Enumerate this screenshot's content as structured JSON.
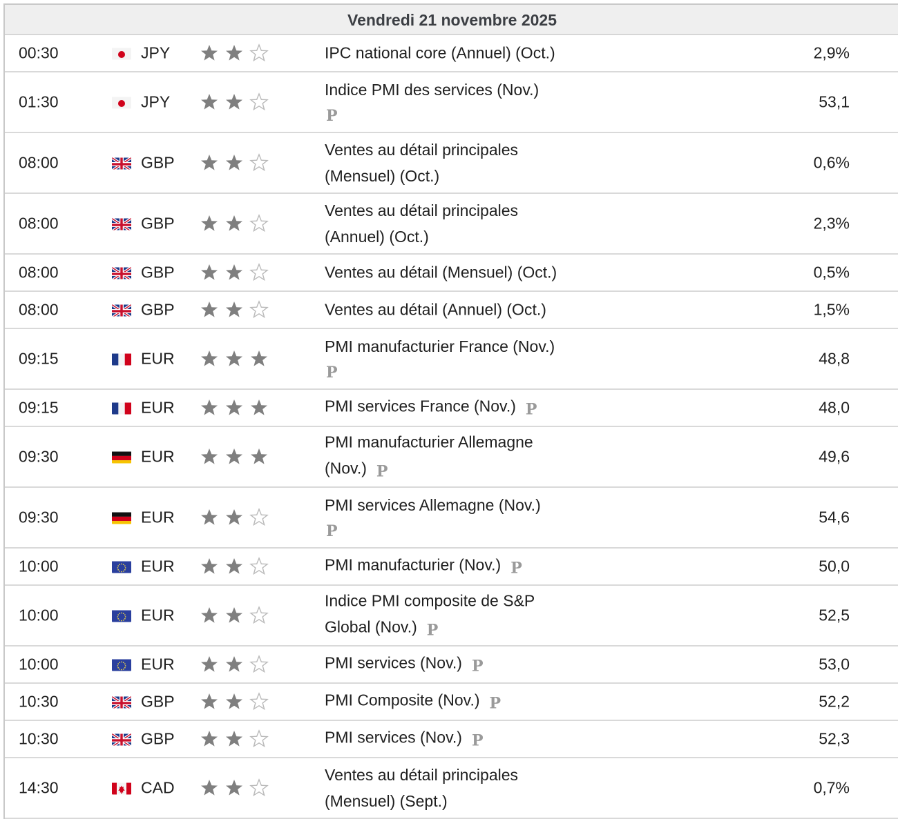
{
  "day": {
    "label": "Vendredi 21 novembre 2025"
  },
  "colors": {
    "star_filled": "#7f7f7f",
    "star_empty": "#b9b9b9",
    "p_mark": "#9a9a9a"
  },
  "rows": [
    {
      "time": "00:30",
      "flag": "japan-flag-icon",
      "currency": "JPY",
      "stars": 2,
      "event_lines": [
        "IPC national core (Annuel) (Oct.)"
      ],
      "prelim": false,
      "p_layout": "none",
      "value": "2,9%",
      "height": 52
    },
    {
      "time": "01:30",
      "flag": "japan-flag-icon",
      "currency": "JPY",
      "stars": 2,
      "event_lines": [
        "Indice PMI des services (Nov.)"
      ],
      "prelim": true,
      "p_layout": "block",
      "value": "53,1",
      "height": 86
    },
    {
      "time": "08:00",
      "flag": "uk-flag-icon",
      "currency": "GBP",
      "stars": 2,
      "event_lines": [
        "Ventes au détail principales",
        "(Mensuel) (Oct.)"
      ],
      "prelim": false,
      "p_layout": "none",
      "value": "0,6%",
      "height": 86
    },
    {
      "time": "08:00",
      "flag": "uk-flag-icon",
      "currency": "GBP",
      "stars": 2,
      "event_lines": [
        "Ventes au détail principales",
        "(Annuel) (Oct.)"
      ],
      "prelim": false,
      "p_layout": "none",
      "value": "2,3%",
      "height": 86
    },
    {
      "time": "08:00",
      "flag": "uk-flag-icon",
      "currency": "GBP",
      "stars": 2,
      "event_lines": [
        "Ventes au détail (Mensuel) (Oct.)"
      ],
      "prelim": false,
      "p_layout": "none",
      "value": "0,5%",
      "height": 52
    },
    {
      "time": "08:00",
      "flag": "uk-flag-icon",
      "currency": "GBP",
      "stars": 2,
      "event_lines": [
        "Ventes au détail (Annuel) (Oct.)"
      ],
      "prelim": false,
      "p_layout": "none",
      "value": "1,5%",
      "height": 52
    },
    {
      "time": "09:15",
      "flag": "france-flag-icon",
      "currency": "EUR",
      "stars": 3,
      "event_lines": [
        "PMI manufacturier France (Nov.)"
      ],
      "prelim": true,
      "p_layout": "block",
      "value": "48,8",
      "height": 86
    },
    {
      "time": "09:15",
      "flag": "france-flag-icon",
      "currency": "EUR",
      "stars": 3,
      "event_lines": [
        "PMI services France (Nov.)"
      ],
      "prelim": true,
      "p_layout": "inline",
      "value": "48,0",
      "height": 52
    },
    {
      "time": "09:30",
      "flag": "germany-flag-icon",
      "currency": "EUR",
      "stars": 3,
      "event_lines": [
        "PMI manufacturier Allemagne",
        "(Nov.)"
      ],
      "prelim": true,
      "p_layout": "inline",
      "value": "49,6",
      "height": 86
    },
    {
      "time": "09:30",
      "flag": "germany-flag-icon",
      "currency": "EUR",
      "stars": 2,
      "event_lines": [
        "PMI services Allemagne (Nov.)"
      ],
      "prelim": true,
      "p_layout": "block",
      "value": "54,6",
      "height": 86
    },
    {
      "time": "10:00",
      "flag": "eu-flag-icon",
      "currency": "EUR",
      "stars": 2,
      "event_lines": [
        "PMI manufacturier (Nov.)"
      ],
      "prelim": true,
      "p_layout": "inline",
      "value": "50,0",
      "height": 52
    },
    {
      "time": "10:00",
      "flag": "eu-flag-icon",
      "currency": "EUR",
      "stars": 2,
      "event_lines": [
        "Indice PMI composite de S&P",
        "Global (Nov.)"
      ],
      "prelim": true,
      "p_layout": "inline",
      "value": "52,5",
      "height": 86
    },
    {
      "time": "10:00",
      "flag": "eu-flag-icon",
      "currency": "EUR",
      "stars": 2,
      "event_lines": [
        "PMI services (Nov.)"
      ],
      "prelim": true,
      "p_layout": "inline",
      "value": "53,0",
      "height": 52
    },
    {
      "time": "10:30",
      "flag": "uk-flag-icon",
      "currency": "GBP",
      "stars": 2,
      "event_lines": [
        "PMI Composite (Nov.)"
      ],
      "prelim": true,
      "p_layout": "inline",
      "value": "52,2",
      "height": 52
    },
    {
      "time": "10:30",
      "flag": "uk-flag-icon",
      "currency": "GBP",
      "stars": 2,
      "event_lines": [
        "PMI services (Nov.)"
      ],
      "prelim": true,
      "p_layout": "inline",
      "value": "52,3",
      "height": 52
    },
    {
      "time": "14:30",
      "flag": "canada-flag-icon",
      "currency": "CAD",
      "stars": 2,
      "event_lines": [
        "Ventes au détail principales",
        "(Mensuel) (Sept.)"
      ],
      "prelim": false,
      "p_layout": "none",
      "value": "0,7%",
      "height": 86
    }
  ],
  "p_label": "P"
}
